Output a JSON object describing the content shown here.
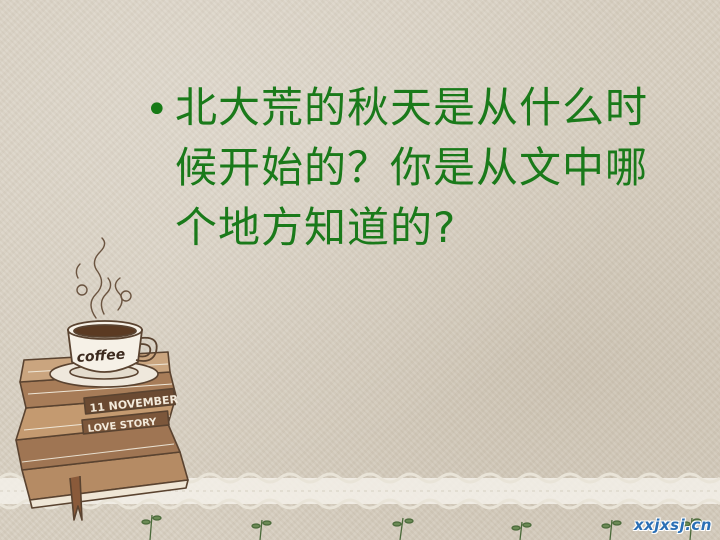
{
  "slide": {
    "bullet": "•",
    "question": "北大荒的秋天是从什么时候开始的？你是从文中哪个地方知道的?"
  },
  "illustration": {
    "cup_text": "coffee",
    "book_title_1": "11 NOVEMBER",
    "book_title_2": "LOVE STORY"
  },
  "watermark": "xxjxsj.cn",
  "colors": {
    "text_green": "#1a7a1a",
    "background": "#d9d1c3",
    "sketch_brown": "#5a4330",
    "watermark_blue": "#2a6fb5"
  }
}
